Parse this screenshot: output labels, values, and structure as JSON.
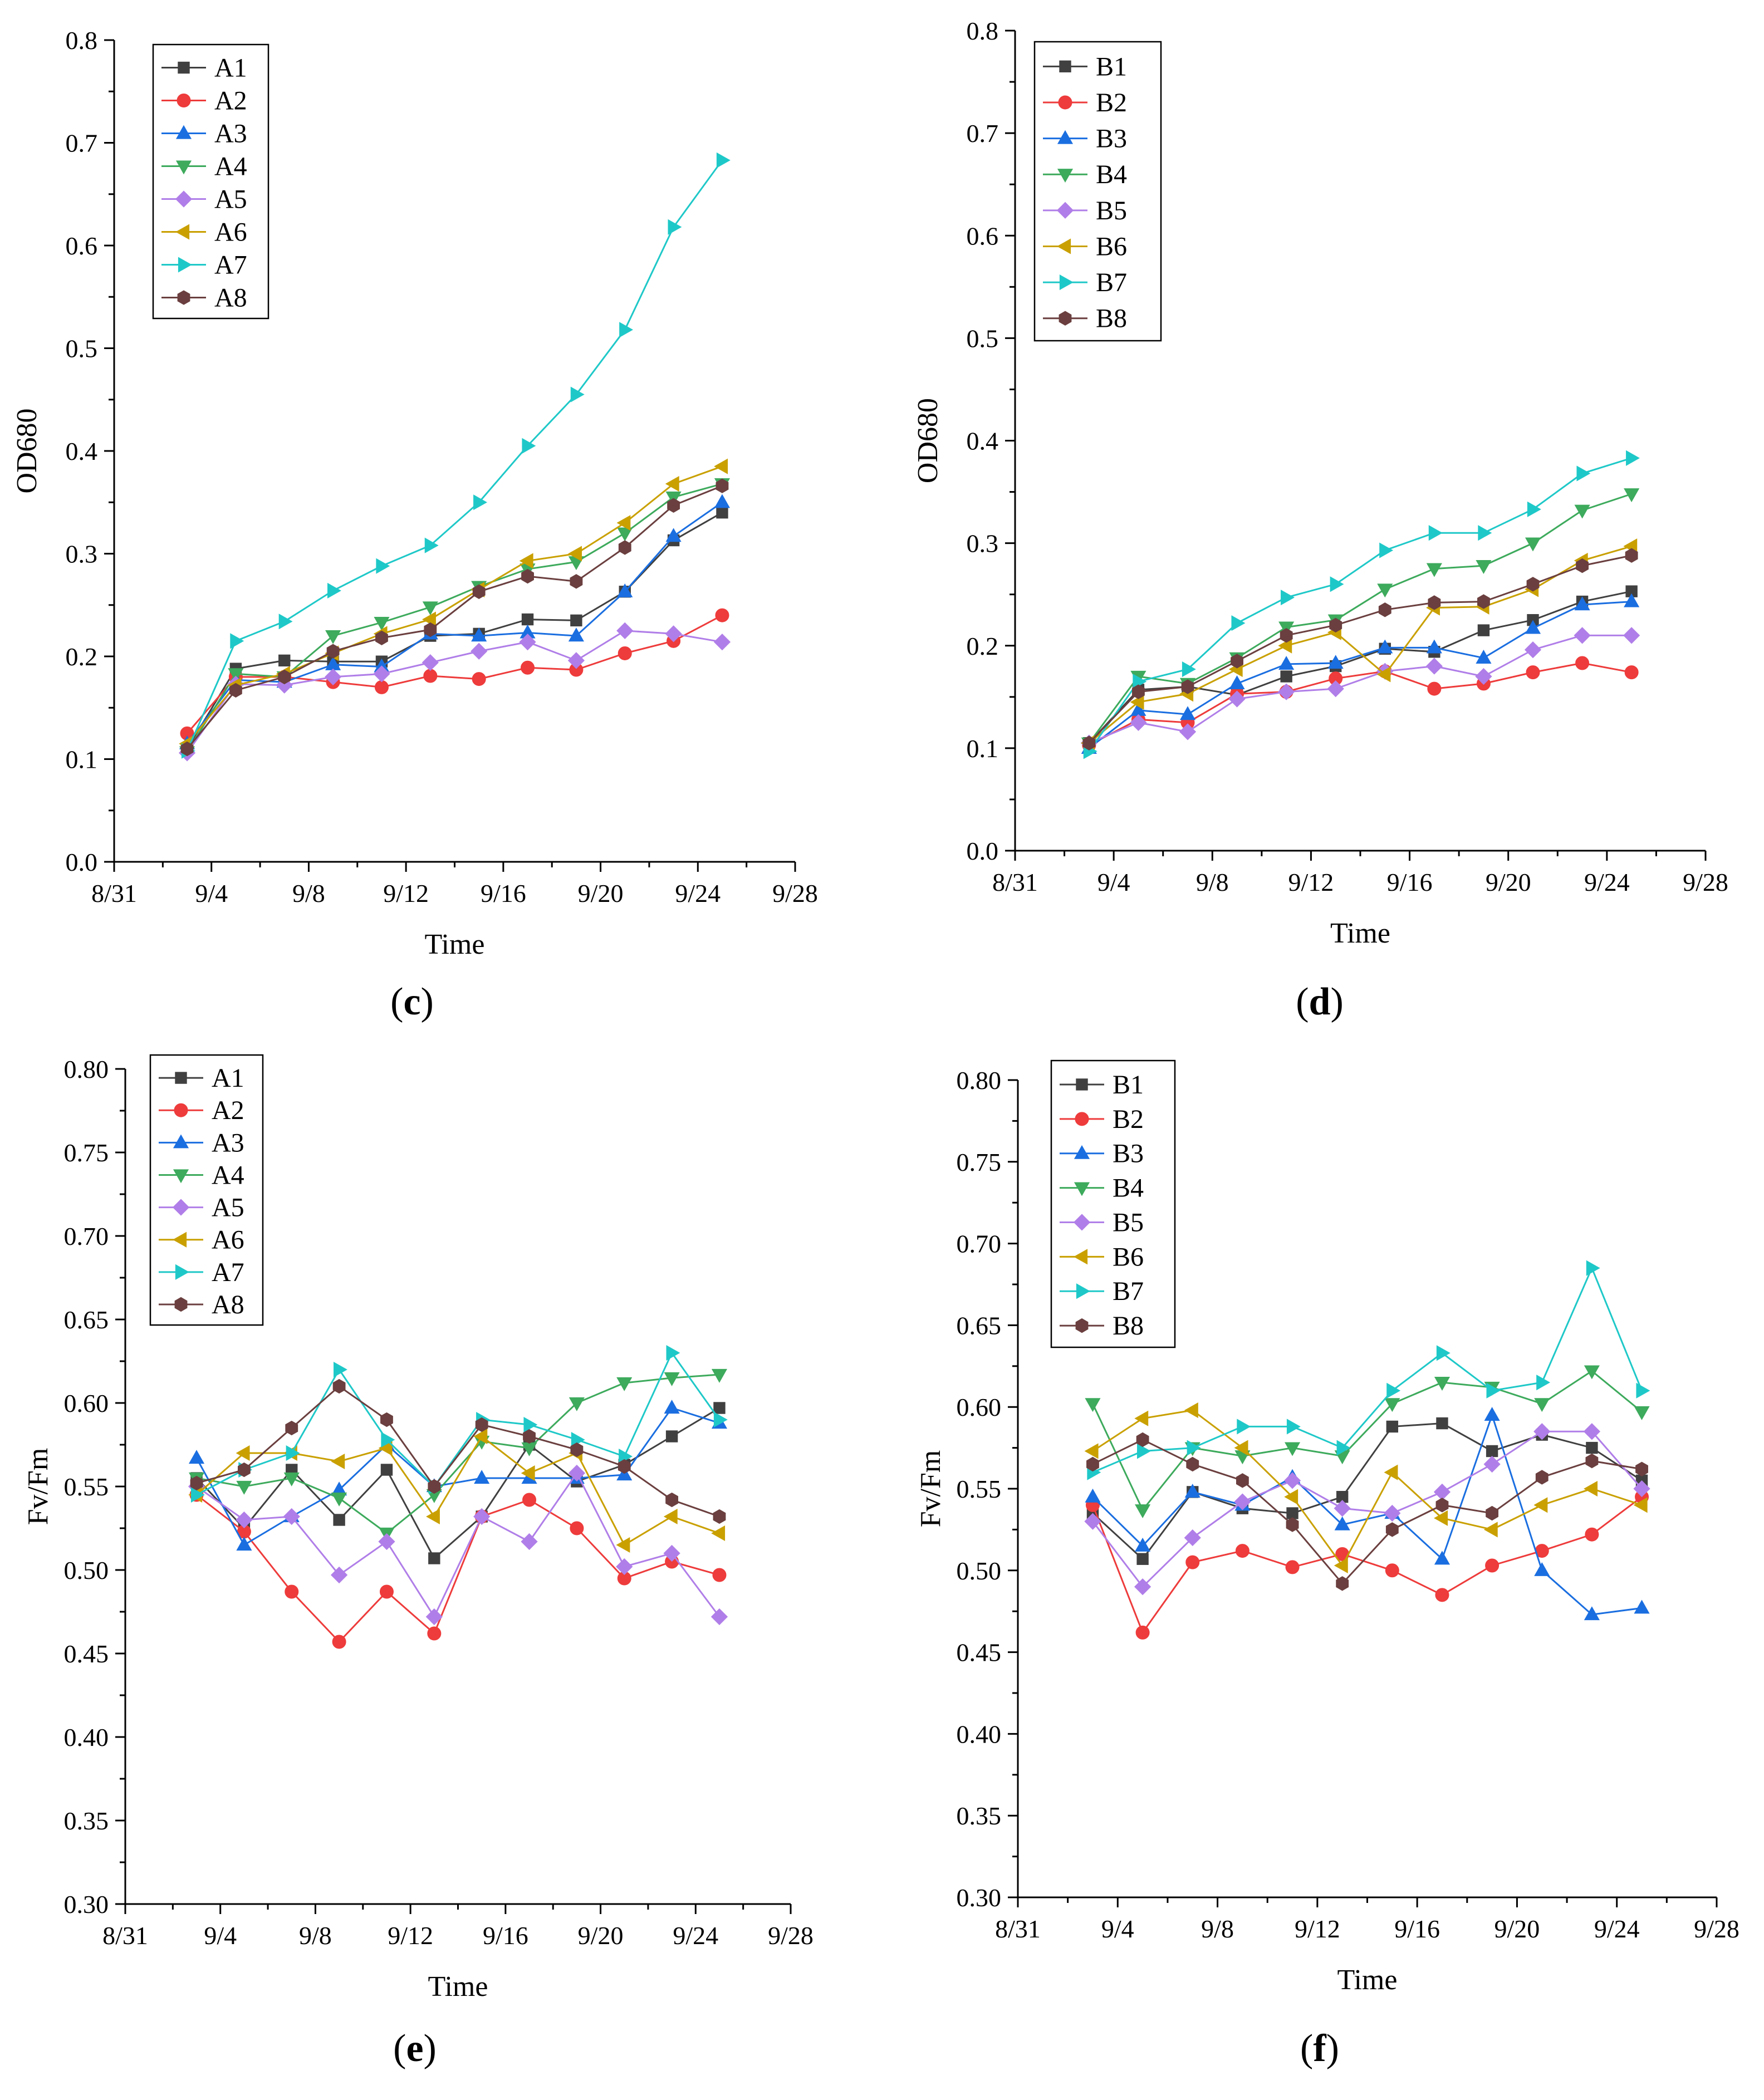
{
  "chart_data": [
    {
      "id": "c",
      "type": "line",
      "panel_label": "(c)",
      "xlabel": "Time",
      "ylabel": "OD680",
      "x_ticks": [
        "8/31",
        "9/4",
        "9/8",
        "9/12",
        "9/16",
        "9/20",
        "9/24",
        "9/28"
      ],
      "xlim": [
        0,
        28
      ],
      "ylim": [
        0,
        0.8
      ],
      "y_ticks": [
        "0.0",
        "0.1",
        "0.2",
        "0.3",
        "0.4",
        "0.5",
        "0.6",
        "0.7",
        "0.8"
      ],
      "x_days": [
        3,
        5,
        7,
        9,
        11,
        13,
        15,
        17,
        19,
        21,
        23,
        25
      ],
      "grid": false,
      "legend_position": "top-left",
      "series": [
        {
          "name": "A1",
          "color": "#404040",
          "marker": "square",
          "values": [
            0.11,
            0.188,
            0.196,
            0.195,
            0.195,
            0.22,
            0.222,
            0.236,
            0.235,
            0.263,
            0.313,
            0.34
          ]
        },
        {
          "name": "A2",
          "color": "#ee3b3b",
          "marker": "circle",
          "values": [
            0.125,
            0.18,
            0.18,
            0.175,
            0.17,
            0.181,
            0.178,
            0.189,
            0.187,
            0.203,
            0.215,
            0.24
          ]
        },
        {
          "name": "A3",
          "color": "#1a6ee0",
          "marker": "triangle-up",
          "values": [
            0.115,
            0.177,
            0.175,
            0.192,
            0.19,
            0.222,
            0.22,
            0.223,
            0.22,
            0.263,
            0.317,
            0.35
          ]
        },
        {
          "name": "A4",
          "color": "#3daa5c",
          "marker": "triangle-down",
          "values": [
            0.107,
            0.183,
            0.18,
            0.22,
            0.233,
            0.248,
            0.268,
            0.285,
            0.292,
            0.32,
            0.355,
            0.368
          ]
        },
        {
          "name": "A5",
          "color": "#b07ee8",
          "marker": "diamond",
          "values": [
            0.106,
            0.173,
            0.172,
            0.18,
            0.183,
            0.194,
            0.205,
            0.214,
            0.196,
            0.225,
            0.222,
            0.214
          ]
        },
        {
          "name": "A6",
          "color": "#c9a000",
          "marker": "triangle-left",
          "values": [
            0.115,
            0.172,
            0.183,
            0.203,
            0.222,
            0.236,
            0.265,
            0.293,
            0.3,
            0.33,
            0.368,
            0.385
          ]
        },
        {
          "name": "A7",
          "color": "#1fc8c8",
          "marker": "triangle-right",
          "values": [
            0.108,
            0.215,
            0.234,
            0.264,
            0.288,
            0.308,
            0.35,
            0.405,
            0.455,
            0.518,
            0.618,
            0.683
          ]
        },
        {
          "name": "A8",
          "color": "#6b3f3f",
          "marker": "hexagon",
          "values": [
            0.11,
            0.167,
            0.18,
            0.205,
            0.218,
            0.226,
            0.263,
            0.278,
            0.273,
            0.306,
            0.347,
            0.366
          ]
        }
      ]
    },
    {
      "id": "d",
      "type": "line",
      "panel_label": "(d)",
      "xlabel": "Time",
      "ylabel": "OD680",
      "x_ticks": [
        "8/31",
        "9/4",
        "9/8",
        "9/12",
        "9/16",
        "9/20",
        "9/24",
        "9/28"
      ],
      "xlim": [
        0,
        28
      ],
      "ylim": [
        0,
        0.8
      ],
      "y_ticks": [
        "0.0",
        "0.1",
        "0.2",
        "0.3",
        "0.4",
        "0.5",
        "0.6",
        "0.7",
        "0.8"
      ],
      "x_days": [
        3,
        5,
        7,
        9,
        11,
        13,
        15,
        17,
        19,
        21,
        23,
        25
      ],
      "grid": false,
      "legend_position": "top-left",
      "series": [
        {
          "name": "B1",
          "color": "#404040",
          "marker": "square",
          "values": [
            0.105,
            0.157,
            0.16,
            0.152,
            0.17,
            0.18,
            0.197,
            0.194,
            0.215,
            0.225,
            0.243,
            0.253
          ]
        },
        {
          "name": "B2",
          "color": "#ee3b3b",
          "marker": "circle",
          "values": [
            0.103,
            0.128,
            0.125,
            0.153,
            0.155,
            0.168,
            0.175,
            0.158,
            0.163,
            0.174,
            0.183,
            0.174
          ]
        },
        {
          "name": "B3",
          "color": "#1a6ee0",
          "marker": "triangle-up",
          "values": [
            0.1,
            0.137,
            0.133,
            0.163,
            0.182,
            0.183,
            0.198,
            0.198,
            0.188,
            0.217,
            0.24,
            0.243
          ]
        },
        {
          "name": "B4",
          "color": "#3daa5c",
          "marker": "triangle-down",
          "values": [
            0.105,
            0.17,
            0.163,
            0.188,
            0.218,
            0.225,
            0.255,
            0.275,
            0.278,
            0.3,
            0.332,
            0.348
          ]
        },
        {
          "name": "B5",
          "color": "#b07ee8",
          "marker": "diamond",
          "values": [
            0.105,
            0.125,
            0.116,
            0.148,
            0.155,
            0.158,
            0.175,
            0.18,
            0.17,
            0.196,
            0.21,
            0.21
          ]
        },
        {
          "name": "B6",
          "color": "#c9a000",
          "marker": "triangle-left",
          "values": [
            0.105,
            0.145,
            0.153,
            0.177,
            0.2,
            0.213,
            0.172,
            0.237,
            0.238,
            0.255,
            0.283,
            0.297
          ]
        },
        {
          "name": "B7",
          "color": "#1fc8c8",
          "marker": "triangle-right",
          "values": [
            0.097,
            0.165,
            0.177,
            0.222,
            0.247,
            0.26,
            0.293,
            0.31,
            0.31,
            0.333,
            0.368,
            0.383
          ]
        },
        {
          "name": "B8",
          "color": "#6b3f3f",
          "marker": "hexagon",
          "values": [
            0.105,
            0.155,
            0.16,
            0.185,
            0.21,
            0.22,
            0.235,
            0.242,
            0.243,
            0.26,
            0.278,
            0.288
          ]
        }
      ]
    },
    {
      "id": "e",
      "type": "line",
      "panel_label": "(e)",
      "xlabel": "Time",
      "ylabel": "Fv/Fm",
      "x_ticks": [
        "8/31",
        "9/4",
        "9/8",
        "9/12",
        "9/16",
        "9/20",
        "9/24",
        "9/28"
      ],
      "xlim": [
        0,
        28
      ],
      "ylim": [
        0.3,
        0.8
      ],
      "y_ticks": [
        "0.30",
        "0.35",
        "0.40",
        "0.45",
        "0.50",
        "0.55",
        "0.60",
        "0.65",
        "0.70",
        "0.75",
        "0.80"
      ],
      "x_days": [
        3,
        5,
        7,
        9,
        11,
        13,
        15,
        17,
        19,
        21,
        23,
        25
      ],
      "grid": false,
      "legend_position": "top-left",
      "series": [
        {
          "name": "A1",
          "color": "#404040",
          "marker": "square",
          "values": [
            0.555,
            0.525,
            0.56,
            0.53,
            0.56,
            0.507,
            0.532,
            0.575,
            0.553,
            0.563,
            0.58,
            0.597
          ]
        },
        {
          "name": "A2",
          "color": "#ee3b3b",
          "marker": "circle",
          "values": [
            0.545,
            0.523,
            0.487,
            0.457,
            0.487,
            0.462,
            0.532,
            0.542,
            0.525,
            0.495,
            0.505,
            0.497
          ]
        },
        {
          "name": "A3",
          "color": "#1a6ee0",
          "marker": "triangle-up",
          "values": [
            0.567,
            0.515,
            0.532,
            0.548,
            0.575,
            0.55,
            0.555,
            0.555,
            0.555,
            0.557,
            0.597,
            0.588
          ]
        },
        {
          "name": "A4",
          "color": "#3daa5c",
          "marker": "triangle-down",
          "values": [
            0.555,
            0.55,
            0.555,
            0.543,
            0.522,
            0.545,
            0.577,
            0.573,
            0.6,
            0.612,
            0.615,
            0.617
          ]
        },
        {
          "name": "A5",
          "color": "#b07ee8",
          "marker": "diamond",
          "values": [
            0.55,
            0.53,
            0.532,
            0.497,
            0.517,
            0.472,
            0.532,
            0.517,
            0.558,
            0.502,
            0.51,
            0.472
          ]
        },
        {
          "name": "A6",
          "color": "#c9a000",
          "marker": "triangle-left",
          "values": [
            0.545,
            0.57,
            0.57,
            0.565,
            0.573,
            0.532,
            0.58,
            0.558,
            0.57,
            0.515,
            0.532,
            0.522
          ]
        },
        {
          "name": "A7",
          "color": "#1fc8c8",
          "marker": "triangle-right",
          "values": [
            0.545,
            0.56,
            0.57,
            0.62,
            0.578,
            0.55,
            0.59,
            0.587,
            0.578,
            0.568,
            0.63,
            0.59
          ]
        },
        {
          "name": "A8",
          "color": "#6b3f3f",
          "marker": "hexagon",
          "values": [
            0.552,
            0.56,
            0.585,
            0.61,
            0.59,
            0.55,
            0.587,
            0.58,
            0.572,
            0.562,
            0.542,
            0.532
          ]
        }
      ]
    },
    {
      "id": "f",
      "type": "line",
      "panel_label": "(f)",
      "xlabel": "Time",
      "ylabel": "Fv/Fm",
      "x_ticks": [
        "8/31",
        "9/4",
        "9/8",
        "9/12",
        "9/16",
        "9/20",
        "9/24",
        "9/28"
      ],
      "xlim": [
        0,
        28
      ],
      "ylim": [
        0.3,
        0.8
      ],
      "y_ticks": [
        "0.30",
        "0.35",
        "0.40",
        "0.45",
        "0.50",
        "0.55",
        "0.60",
        "0.65",
        "0.70",
        "0.75",
        "0.80"
      ],
      "x_days": [
        3,
        5,
        7,
        9,
        11,
        13,
        15,
        17,
        19,
        21,
        23,
        25
      ],
      "grid": false,
      "legend_position": "top-left",
      "series": [
        {
          "name": "B1",
          "color": "#404040",
          "marker": "square",
          "values": [
            0.535,
            0.507,
            0.548,
            0.538,
            0.535,
            0.545,
            0.588,
            0.59,
            0.573,
            0.583,
            0.575,
            0.555
          ]
        },
        {
          "name": "B2",
          "color": "#ee3b3b",
          "marker": "circle",
          "values": [
            0.54,
            0.462,
            0.505,
            0.512,
            0.502,
            0.51,
            0.5,
            0.485,
            0.503,
            0.512,
            0.522,
            0.545
          ]
        },
        {
          "name": "B3",
          "color": "#1a6ee0",
          "marker": "triangle-up",
          "values": [
            0.545,
            0.515,
            0.548,
            0.54,
            0.557,
            0.528,
            0.535,
            0.507,
            0.595,
            0.5,
            0.473,
            0.477
          ]
        },
        {
          "name": "B4",
          "color": "#3daa5c",
          "marker": "triangle-down",
          "values": [
            0.602,
            0.537,
            0.575,
            0.57,
            0.575,
            0.57,
            0.602,
            0.615,
            0.612,
            0.602,
            0.622,
            0.597
          ]
        },
        {
          "name": "B5",
          "color": "#b07ee8",
          "marker": "diamond",
          "values": [
            0.53,
            0.49,
            0.52,
            0.542,
            0.555,
            0.538,
            0.535,
            0.548,
            0.565,
            0.585,
            0.585,
            0.55
          ]
        },
        {
          "name": "B6",
          "color": "#c9a000",
          "marker": "triangle-left",
          "values": [
            0.573,
            0.593,
            0.598,
            0.575,
            0.545,
            0.503,
            0.56,
            0.532,
            0.525,
            0.54,
            0.55,
            0.54
          ]
        },
        {
          "name": "B7",
          "color": "#1fc8c8",
          "marker": "triangle-right",
          "values": [
            0.56,
            0.573,
            0.575,
            0.588,
            0.588,
            0.575,
            0.61,
            0.633,
            0.61,
            0.615,
            0.685,
            0.61
          ]
        },
        {
          "name": "B8",
          "color": "#6b3f3f",
          "marker": "hexagon",
          "values": [
            0.565,
            0.58,
            0.565,
            0.555,
            0.528,
            0.492,
            0.525,
            0.54,
            0.535,
            0.557,
            0.567,
            0.562
          ]
        }
      ]
    }
  ]
}
